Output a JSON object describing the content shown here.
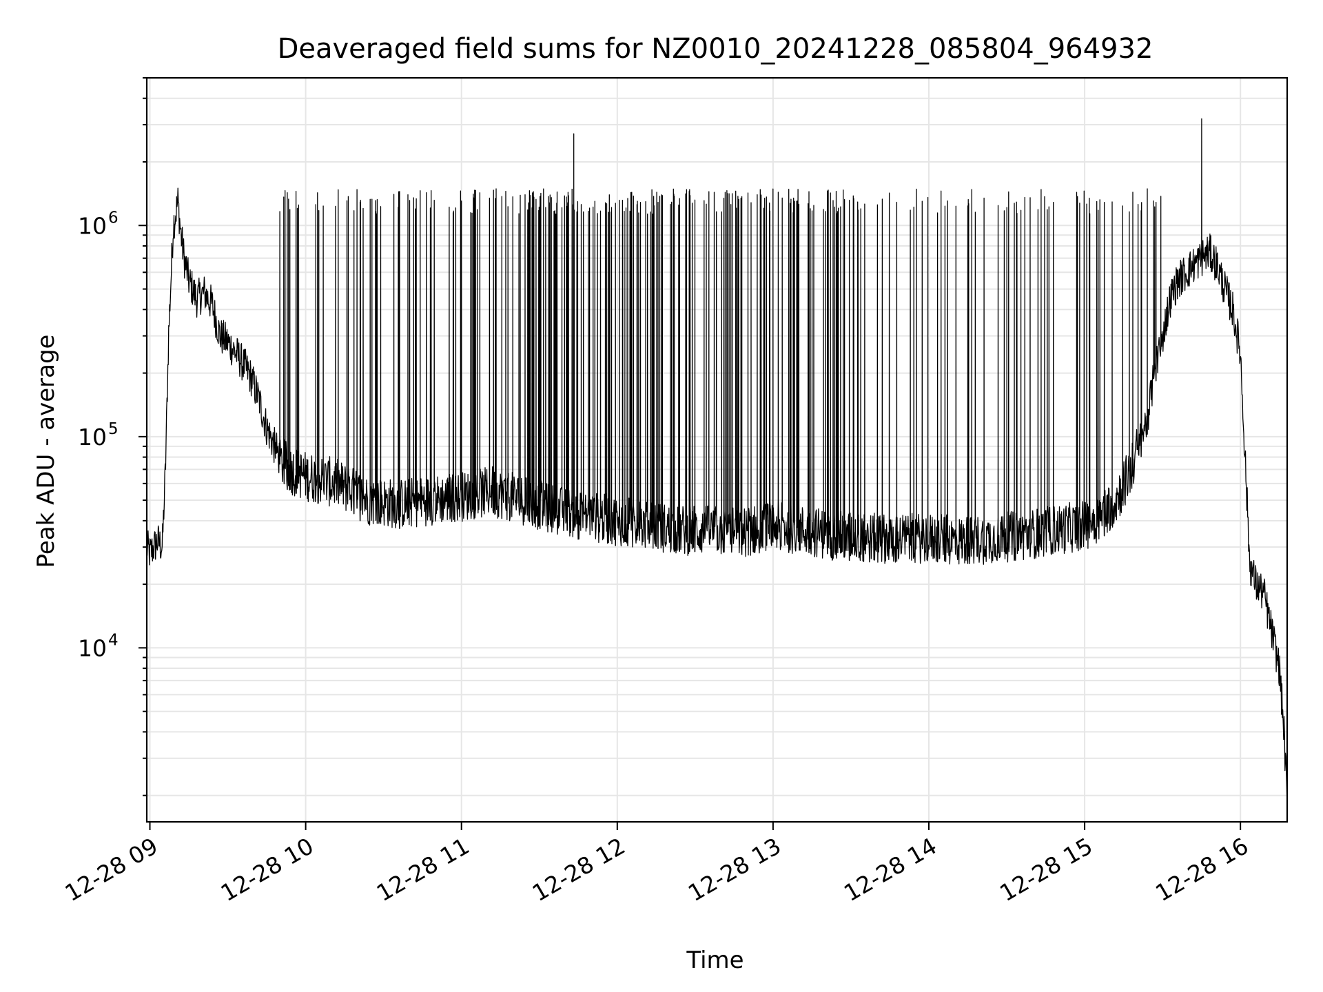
{
  "chart_data": {
    "type": "line",
    "title": "Deaveraged field sums for NZ0010_20241228_085804_964932",
    "xlabel": "Time",
    "ylabel": "Peak ADU - average",
    "yscale": "log",
    "grid": true,
    "legend": "none",
    "xlim_hours": [
      8.98,
      16.3
    ],
    "ylim": [
      1500,
      5000000
    ],
    "x_ticks": [
      {
        "value": 9,
        "label": "12-28 09"
      },
      {
        "value": 10,
        "label": "12-28 10"
      },
      {
        "value": 11,
        "label": "12-28 11"
      },
      {
        "value": 12,
        "label": "12-28 12"
      },
      {
        "value": 13,
        "label": "12-28 13"
      },
      {
        "value": 14,
        "label": "12-28 14"
      },
      {
        "value": 15,
        "label": "12-28 15"
      },
      {
        "value": 16,
        "label": "12-28 16"
      }
    ],
    "y_ticks": [
      {
        "value": 10000,
        "base": "10",
        "exp": "4"
      },
      {
        "value": 100000,
        "base": "10",
        "exp": "5"
      },
      {
        "value": 1000000,
        "base": "10",
        "exp": "6"
      }
    ],
    "line_color": "#000000",
    "series": [
      {
        "x_hours": [
          8.98,
          9.0,
          9.05,
          9.08,
          9.1,
          9.12,
          9.15,
          9.18,
          9.2,
          9.22,
          9.25,
          9.3,
          9.35,
          9.4,
          9.45,
          9.5,
          9.55,
          9.6,
          9.65,
          9.7,
          9.75,
          9.8,
          9.85,
          9.9,
          10.0,
          10.2,
          10.4,
          10.6,
          10.8,
          11.0,
          11.2,
          11.4,
          11.6,
          11.8,
          12.0,
          12.2,
          12.4,
          12.6,
          12.8,
          13.0,
          13.2,
          13.4,
          13.6,
          13.8,
          14.0,
          14.2,
          14.4,
          14.6,
          14.8,
          15.0,
          15.1,
          15.2,
          15.3,
          15.4,
          15.45,
          15.5,
          15.55,
          15.6,
          15.65,
          15.7,
          15.75,
          15.8,
          15.85,
          15.9,
          15.95,
          16.0,
          16.03,
          16.06,
          16.1,
          16.15,
          16.2,
          16.25,
          16.28,
          16.3
        ],
        "values": [
          30000,
          28000,
          32000,
          30000,
          70000,
          300000,
          1000000,
          1300000,
          900000,
          700000,
          550000,
          450000,
          480000,
          420000,
          300000,
          280000,
          250000,
          220000,
          190000,
          150000,
          110000,
          90000,
          75000,
          70000,
          65000,
          60000,
          50000,
          48000,
          50000,
          52000,
          55000,
          50000,
          45000,
          42000,
          40000,
          38000,
          36000,
          36000,
          35000,
          38000,
          36000,
          34000,
          33000,
          33000,
          33000,
          32000,
          33000,
          34000,
          36000,
          38000,
          42000,
          50000,
          70000,
          120000,
          200000,
          300000,
          450000,
          550000,
          600000,
          650000,
          700000,
          750000,
          650000,
          500000,
          400000,
          250000,
          80000,
          25000,
          20000,
          18000,
          12000,
          8000,
          4000,
          1800
        ]
      }
    ],
    "spike_count": 220,
    "spike_peak_max": 3200000
  }
}
